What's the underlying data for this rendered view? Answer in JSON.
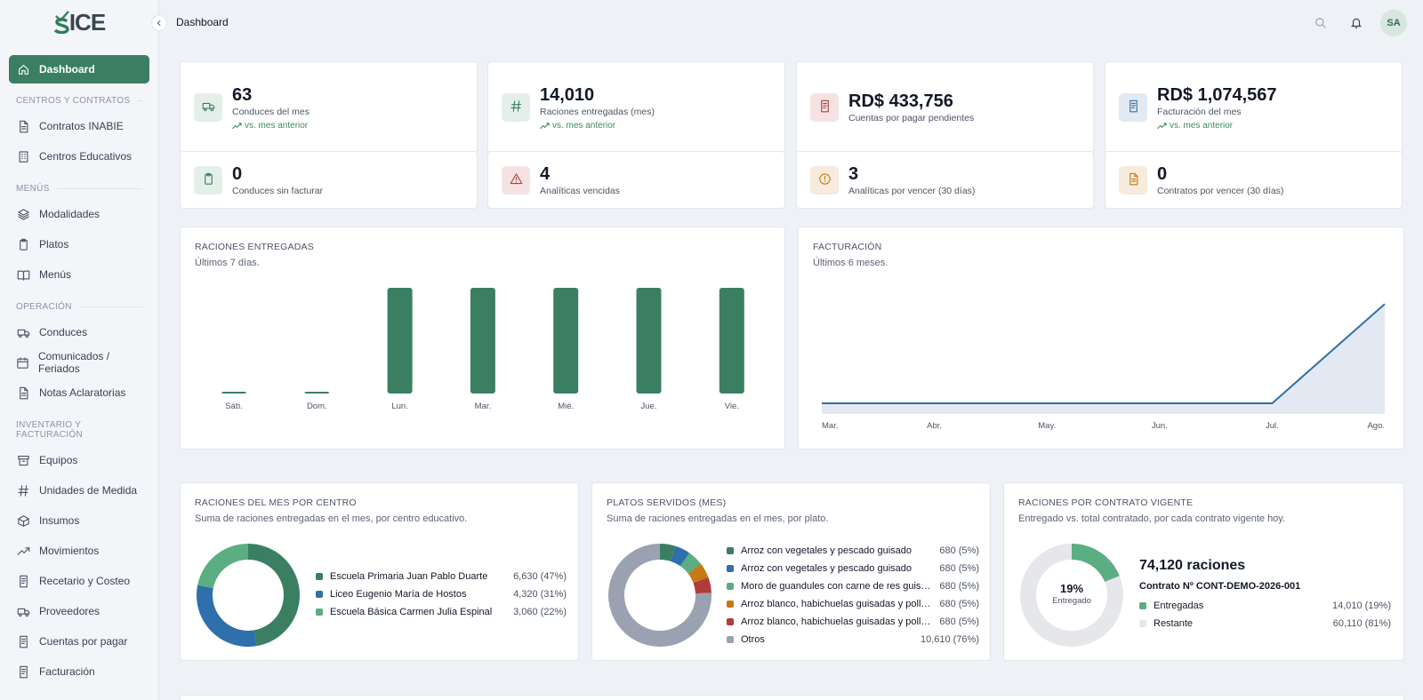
{
  "app": {
    "logo_text_s": "S",
    "logo_text_ice": "ICE"
  },
  "colors": {
    "primary": "#3b7f62",
    "blue": "#2f6fab",
    "light_green": "#5aae82",
    "orange": "#c57a12",
    "red": "#b23b3b",
    "gray": "#9aa2b1"
  },
  "sidebar": {
    "active": {
      "label": "Dashboard",
      "icon": "home-icon"
    },
    "sections": [
      {
        "label": "CENTROS Y CONTRATOS",
        "items": [
          {
            "label": "Contratos INABIE",
            "icon": "document-icon"
          },
          {
            "label": "Centros Educativos",
            "icon": "building-icon"
          }
        ]
      },
      {
        "label": "MENÚS",
        "items": [
          {
            "label": "Modalidades",
            "icon": "layers-icon"
          },
          {
            "label": "Platos",
            "icon": "clipboard-icon"
          },
          {
            "label": "Menús",
            "icon": "book-icon"
          }
        ]
      },
      {
        "label": "OPERACIÓN",
        "items": [
          {
            "label": "Conduces",
            "icon": "truck-icon"
          },
          {
            "label": "Comunicados / Feriados",
            "icon": "calendar-icon"
          },
          {
            "label": "Notas Aclaratorias",
            "icon": "document-icon"
          }
        ]
      },
      {
        "label": "INVENTARIO Y FACTURACIÓN",
        "items": [
          {
            "label": "Equipos",
            "icon": "archive-icon"
          },
          {
            "label": "Unidades de Medida",
            "icon": "hash-icon"
          },
          {
            "label": "Insumos",
            "icon": "package-icon"
          },
          {
            "label": "Movimientos",
            "icon": "trending-up-icon"
          },
          {
            "label": "Recetario y Costeo",
            "icon": "receipt-icon"
          },
          {
            "label": "Proveedores",
            "icon": "truck-icon"
          },
          {
            "label": "Cuentas por pagar",
            "icon": "receipt-icon"
          },
          {
            "label": "Facturación",
            "icon": "receipt-icon"
          }
        ]
      }
    ]
  },
  "topbar": {
    "breadcrumb": "Dashboard",
    "avatar_initials": "SA"
  },
  "stats": [
    {
      "value": "63",
      "label": "Conduces del mes",
      "trend": "vs. mes anterior",
      "icon": "truck-icon",
      "bg": "#e4efe9",
      "fg": "#3b7f62"
    },
    {
      "value": "14,010",
      "label": "Raciones entregadas (mes)",
      "trend": "vs. mes anterior",
      "icon": "hash-icon",
      "bg": "#e4efe9",
      "fg": "#3b7f62"
    },
    {
      "value": "RD$ 433,756",
      "label": "Cuentas por pagar pendientes",
      "trend": "",
      "icon": "receipt-icon",
      "bg": "#f5e3e3",
      "fg": "#b23b3b"
    },
    {
      "value": "RD$ 1,074,567",
      "label": "Facturación del mes",
      "trend": "vs. mes anterior",
      "icon": "receipt-icon",
      "bg": "#e2e9f2",
      "fg": "#2f6fab"
    },
    {
      "value": "0",
      "label": "Conduces sin facturar",
      "trend": "",
      "icon": "clipboard-icon",
      "bg": "#e4efe9",
      "fg": "#3b7f62"
    },
    {
      "value": "4",
      "label": "Analíticas vencidas",
      "trend": "",
      "icon": "alert-triangle-icon",
      "bg": "#f5e3e3",
      "fg": "#b23b3b"
    },
    {
      "value": "3",
      "label": "Analíticas por vencer (30 días)",
      "trend": "",
      "icon": "alert-circle-icon",
      "bg": "#f6ebdc",
      "fg": "#c57a12"
    },
    {
      "value": "0",
      "label": "Contratos por vencer (30 días)",
      "trend": "",
      "icon": "document-icon",
      "bg": "#f6ebdc",
      "fg": "#c57a12"
    }
  ],
  "raciones_chart": {
    "title": "RACIONES ENTREGADAS",
    "subtitle": "Últimos 7 días."
  },
  "facturacion_chart": {
    "title": "FACTURACIÓN",
    "subtitle": "Últimos 6 meses."
  },
  "centro_panel": {
    "title": "RACIONES DEL MES POR CENTRO",
    "subtitle": "Suma de raciones entregadas en el mes, por centro educativo.",
    "items": [
      {
        "name": "Escuela Primaria Juan Pablo Duarte",
        "value": "6,630 (47%)",
        "color": "#3b7f62"
      },
      {
        "name": "Liceo Eugenio María de Hostos",
        "value": "4,320 (31%)",
        "color": "#2f6fab"
      },
      {
        "name": "Escuela Básica Carmen Julia Espinal",
        "value": "3,060 (22%)",
        "color": "#5aae82"
      }
    ]
  },
  "platos_panel": {
    "title": "PLATOS SERVIDOS (MES)",
    "subtitle": "Suma de raciones entregadas en el mes, por plato.",
    "items": [
      {
        "name": "Arroz con vegetales y pescado guisado",
        "value": "680 (5%)",
        "color": "#3b7f62"
      },
      {
        "name": "Arroz con vegetales y pescado guisado",
        "value": "680 (5%)",
        "color": "#2f6fab"
      },
      {
        "name": "Moro de guandules con carne de res guisada",
        "value": "680 (5%)",
        "color": "#5aae82"
      },
      {
        "name": "Arroz blanco, habichuelas guisadas y pollo al ...",
        "value": "680 (5%)",
        "color": "#c57a12"
      },
      {
        "name": "Arroz blanco, habichuelas guisadas y pollo al ...",
        "value": "680 (5%)",
        "color": "#b23b3b"
      },
      {
        "name": "Otros",
        "value": "10,610 (76%)",
        "color": "#9aa2b1"
      }
    ]
  },
  "contrato_panel": {
    "title": "RACIONES POR CONTRATO VIGENTE",
    "subtitle": "Entregado vs. total contratado, por cada contrato vigente hoy.",
    "total": "74,120 raciones",
    "contract": "Contrato Nº CONT-DEMO-2026-001",
    "center_pct": "19%",
    "center_label": "Entregado",
    "items": [
      {
        "name": "Entregadas",
        "value": "14,010 (19%)",
        "color": "#5aae82"
      },
      {
        "name": "Restante",
        "value": "60,110 (81%)",
        "color": "#e5e7eb"
      }
    ]
  },
  "chart_data": [
    {
      "type": "bar",
      "title": "RACIONES ENTREGADAS",
      "subtitle": "Últimos 7 días.",
      "categories": [
        "Sáb.",
        "Dom.",
        "Lun.",
        "Mar.",
        "Mié.",
        "Jue.",
        "Vie."
      ],
      "values": [
        0,
        0,
        2802,
        2802,
        2802,
        2802,
        2802
      ],
      "ylim": [
        0,
        2802
      ],
      "color": "#3b7f62",
      "grid": false
    },
    {
      "type": "area",
      "title": "FACTURACIÓN",
      "subtitle": "Últimos 6 meses.",
      "categories": [
        "Mar.",
        "Abr.",
        "May.",
        "Jun.",
        "Jul.",
        "Ago."
      ],
      "values": [
        0,
        0,
        0,
        0,
        0,
        1074567
      ],
      "ylim": [
        0,
        1250000
      ],
      "color": "#2f6fab",
      "grid": false
    },
    {
      "type": "pie",
      "title": "RACIONES DEL MES POR CENTRO",
      "categories": [
        "Escuela Primaria Juan Pablo Duarte",
        "Liceo Eugenio María de Hostos",
        "Escuela Básica Carmen Julia Espinal"
      ],
      "values": [
        6630,
        4320,
        3060
      ]
    },
    {
      "type": "pie",
      "title": "PLATOS SERVIDOS (MES)",
      "categories": [
        "Arroz con vegetales y pescado guisado",
        "Arroz con vegetales y pescado guisado",
        "Moro de guandules con carne de res guisada",
        "Arroz blanco, habichuelas guisadas y pollo al ...",
        "Arroz blanco, habichuelas guisadas y pollo al ...",
        "Otros"
      ],
      "values": [
        680,
        680,
        680,
        680,
        680,
        10610
      ]
    },
    {
      "type": "pie",
      "title": "RACIONES POR CONTRATO VIGENTE",
      "categories": [
        "Entregadas",
        "Restante"
      ],
      "values": [
        14010,
        60110
      ]
    }
  ]
}
